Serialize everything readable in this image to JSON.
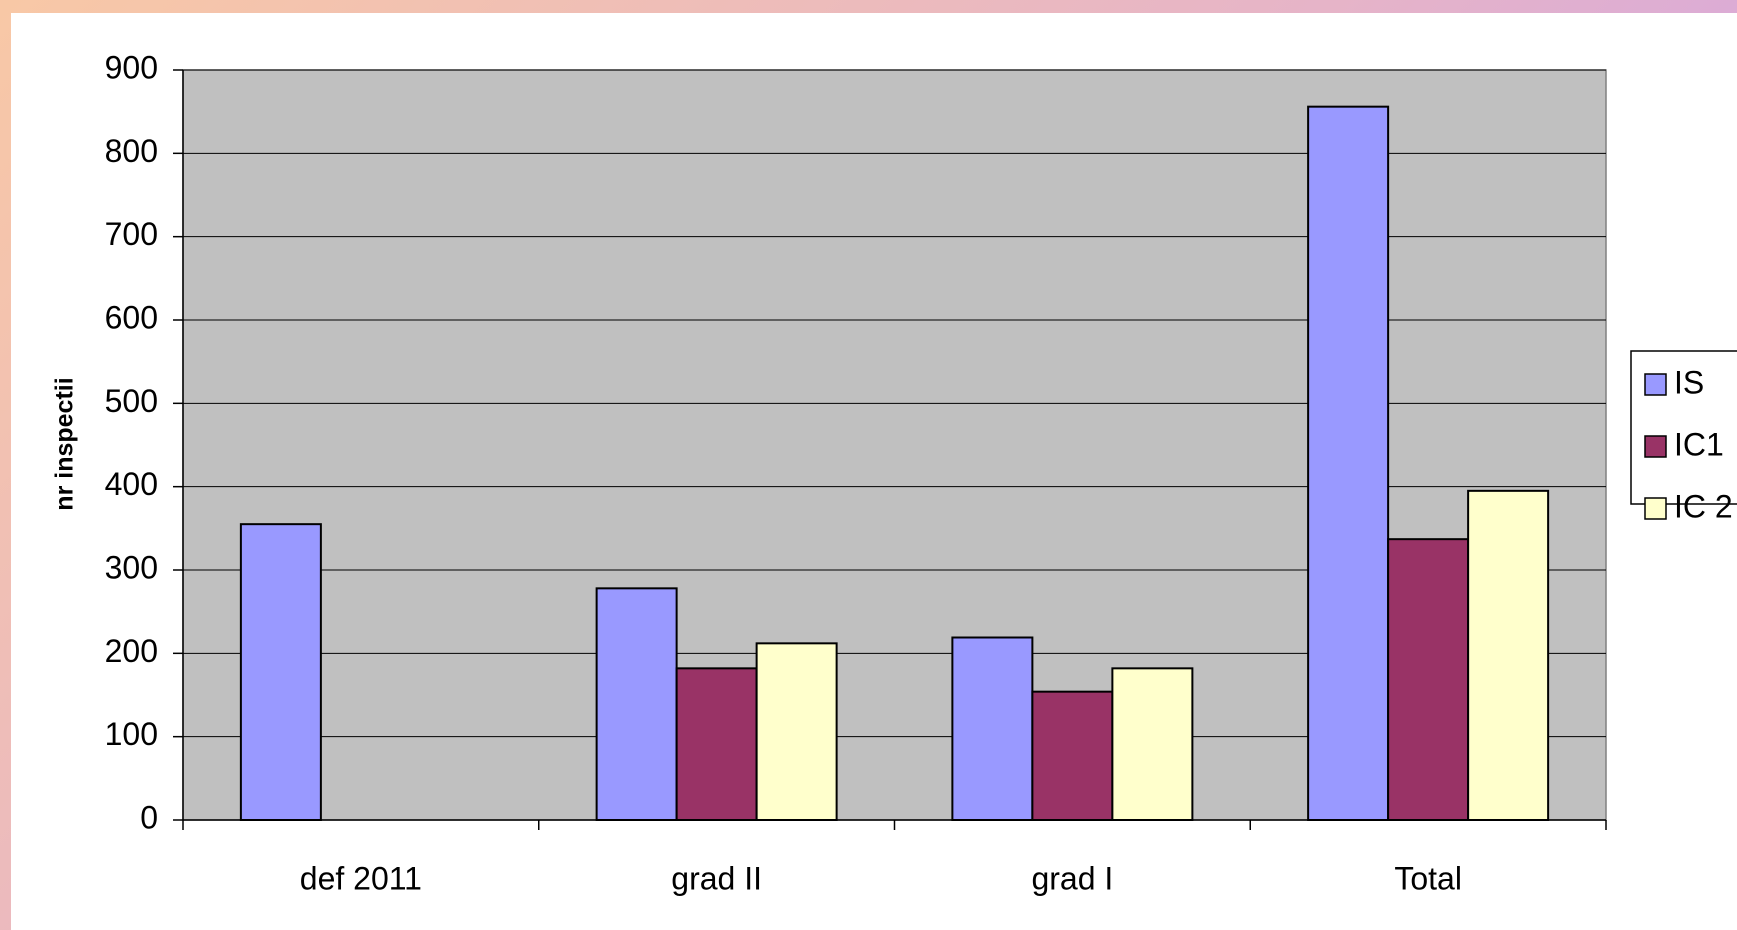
{
  "chart_data": {
    "type": "bar",
    "y_axis_label": "nr inspectii",
    "categories": [
      "def 2011",
      "grad II",
      "grad I",
      "Total"
    ],
    "series": [
      {
        "name": "IS",
        "color": "#9999ff",
        "values": [
          355,
          278,
          219,
          856
        ]
      },
      {
        "name": "IC1",
        "color": "#993366",
        "values": [
          null,
          182,
          154,
          337
        ]
      },
      {
        "name": "IC 2",
        "color": "#ffffcc",
        "values": [
          null,
          212,
          182,
          395
        ]
      }
    ],
    "ylim": [
      0,
      900
    ],
    "yticks": [
      0,
      100,
      200,
      300,
      400,
      500,
      600,
      700,
      800,
      900
    ],
    "grid": true,
    "legend": "right",
    "plot_background": "#c0c0c0"
  }
}
